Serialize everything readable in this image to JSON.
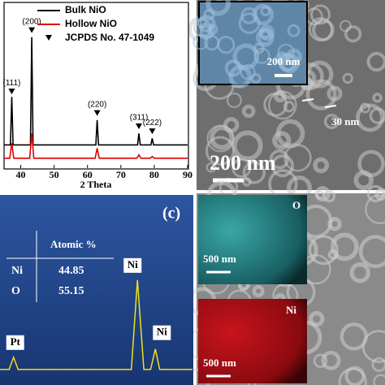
{
  "chart_data": [
    {
      "type": "line",
      "xlabel": "2 Theta",
      "xlim": [
        35,
        90
      ],
      "xticks": [
        40,
        50,
        60,
        70,
        80,
        90
      ],
      "ylim": [
        0,
        100
      ],
      "series": [
        {
          "name": "Bulk NiO",
          "color": "#000000",
          "x": [
            35,
            36.9,
            37.3,
            37.7,
            42.9,
            43.3,
            43.7,
            62.5,
            62.9,
            63.3,
            75.0,
            75.4,
            75.8,
            79.0,
            79.4,
            79.8,
            90
          ],
          "values": [
            14,
            14,
            43,
            14,
            14,
            79,
            14,
            14,
            29,
            14,
            14,
            21,
            14,
            14,
            18,
            14,
            14
          ]
        },
        {
          "name": "Hollow NiO",
          "color": "#e00000",
          "x": [
            35,
            36.7,
            37.3,
            37.9,
            42.7,
            43.3,
            43.9,
            62.3,
            62.9,
            63.5,
            74.8,
            75.4,
            76.0,
            78.8,
            79.4,
            80.0,
            90
          ],
          "values": [
            6,
            6,
            15,
            6,
            6,
            21,
            6,
            6,
            12,
            6,
            6,
            8,
            6,
            6,
            7,
            6,
            6
          ]
        },
        {
          "name": "JCPDS No. 47-1049",
          "color": "#000000",
          "marker": "triangle-down",
          "x": [
            37.3,
            43.3,
            62.9,
            75.4,
            79.4
          ],
          "values": [
            46,
            83,
            33,
            25,
            22
          ],
          "point_labels": [
            "(111)",
            "(200)",
            "(220)",
            "(311)",
            "(222)"
          ]
        }
      ]
    },
    {
      "type": "line",
      "panel_label": "(c)",
      "xlim": [
        1.4,
        9.9
      ],
      "ylim": [
        0,
        100
      ],
      "series": [
        {
          "color": "#f0e020",
          "x": [
            1.4,
            1.8,
            2.0,
            2.2,
            7.2,
            7.47,
            7.75,
            8.05,
            8.26,
            8.45,
            9.9
          ],
          "values": [
            3.5,
            3.5,
            11,
            3.5,
            3.5,
            58,
            3.5,
            3.5,
            16,
            3.5,
            3.5
          ]
        }
      ],
      "peak_labels": [
        "Pt",
        "Ni",
        "Ni"
      ],
      "table": {
        "header": "Atomic %",
        "rows": [
          [
            "Ni",
            44.85
          ],
          [
            "O",
            55.15
          ]
        ]
      }
    }
  ],
  "images": {
    "sem_inset_scale": "200 nm",
    "sem_wall": "30 nm",
    "sem_scale": "200 nm",
    "map_o_label": "O",
    "map_o_scale": "500 nm",
    "map_ni_label": "Ni",
    "map_ni_scale": "500 nm"
  }
}
